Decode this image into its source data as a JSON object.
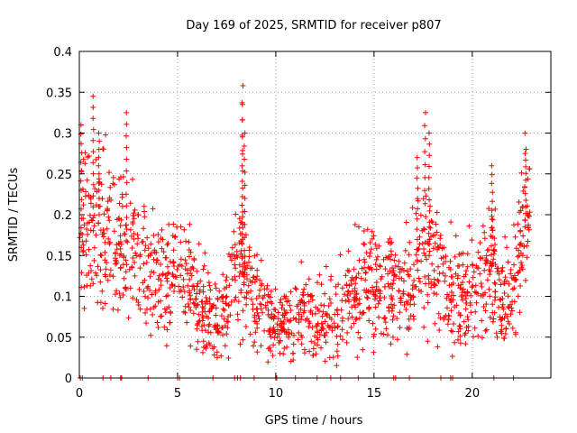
{
  "chart_data": {
    "type": "scatter",
    "title": "Day 169 of 2025, SRMTID for receiver p807",
    "xlabel": "GPS time / hours",
    "ylabel": "SRMTID / TECUs",
    "xlim": [
      0,
      24
    ],
    "ylim": [
      0,
      0.4
    ],
    "x_ticks": [
      0,
      5,
      10,
      15,
      20
    ],
    "x_tick_labels": [
      "0",
      "5",
      "10",
      "15",
      "20"
    ],
    "y_ticks": [
      0,
      0.05,
      0.1,
      0.15,
      0.2,
      0.25,
      0.3,
      0.35,
      0.4
    ],
    "y_tick_labels": [
      "0",
      "0.05",
      "0.1",
      "0.15",
      "0.2",
      "0.25",
      "0.3",
      "0.35",
      "0.4"
    ],
    "grid": true,
    "marker": "+",
    "marker_color": "#ff0000",
    "trend": [
      {
        "x": 0.0,
        "y": 0.18
      },
      {
        "x": 0.5,
        "y": 0.2
      },
      {
        "x": 1.0,
        "y": 0.19
      },
      {
        "x": 1.5,
        "y": 0.17
      },
      {
        "x": 2.0,
        "y": 0.16
      },
      {
        "x": 2.5,
        "y": 0.17
      },
      {
        "x": 3.0,
        "y": 0.15
      },
      {
        "x": 3.5,
        "y": 0.14
      },
      {
        "x": 4.0,
        "y": 0.13
      },
      {
        "x": 4.5,
        "y": 0.12
      },
      {
        "x": 5.0,
        "y": 0.13
      },
      {
        "x": 5.5,
        "y": 0.12
      },
      {
        "x": 6.0,
        "y": 0.1
      },
      {
        "x": 6.5,
        "y": 0.08
      },
      {
        "x": 7.0,
        "y": 0.07
      },
      {
        "x": 7.5,
        "y": 0.09
      },
      {
        "x": 8.0,
        "y": 0.14
      },
      {
        "x": 8.5,
        "y": 0.12
      },
      {
        "x": 9.0,
        "y": 0.1
      },
      {
        "x": 9.5,
        "y": 0.08
      },
      {
        "x": 10.0,
        "y": 0.06
      },
      {
        "x": 10.5,
        "y": 0.06
      },
      {
        "x": 11.0,
        "y": 0.07
      },
      {
        "x": 11.5,
        "y": 0.08
      },
      {
        "x": 12.0,
        "y": 0.07
      },
      {
        "x": 12.5,
        "y": 0.07
      },
      {
        "x": 13.0,
        "y": 0.07
      },
      {
        "x": 13.5,
        "y": 0.09
      },
      {
        "x": 14.0,
        "y": 0.11
      },
      {
        "x": 14.5,
        "y": 0.12
      },
      {
        "x": 15.0,
        "y": 0.12
      },
      {
        "x": 15.5,
        "y": 0.11
      },
      {
        "x": 16.0,
        "y": 0.1
      },
      {
        "x": 16.5,
        "y": 0.11
      },
      {
        "x": 17.0,
        "y": 0.12
      },
      {
        "x": 17.5,
        "y": 0.15
      },
      {
        "x": 18.0,
        "y": 0.15
      },
      {
        "x": 18.5,
        "y": 0.12
      },
      {
        "x": 19.0,
        "y": 0.1
      },
      {
        "x": 19.5,
        "y": 0.1
      },
      {
        "x": 20.0,
        "y": 0.11
      },
      {
        "x": 20.5,
        "y": 0.12
      },
      {
        "x": 21.0,
        "y": 0.14
      },
      {
        "x": 21.5,
        "y": 0.1
      },
      {
        "x": 22.0,
        "y": 0.1
      },
      {
        "x": 22.5,
        "y": 0.17
      },
      {
        "x": 22.9,
        "y": 0.2
      }
    ],
    "peaks": [
      {
        "x": 0.1,
        "y": 0.31
      },
      {
        "x": 0.7,
        "y": 0.345
      },
      {
        "x": 1.0,
        "y": 0.3
      },
      {
        "x": 2.4,
        "y": 0.325
      },
      {
        "x": 8.3,
        "y": 0.358
      },
      {
        "x": 8.3,
        "y": 0.335
      },
      {
        "x": 8.4,
        "y": 0.3
      },
      {
        "x": 17.6,
        "y": 0.325
      },
      {
        "x": 17.8,
        "y": 0.3
      },
      {
        "x": 17.2,
        "y": 0.27
      },
      {
        "x": 22.7,
        "y": 0.275
      },
      {
        "x": 21.0,
        "y": 0.26
      }
    ],
    "zero_markers_x": [
      0.05,
      0.15,
      1.2,
      1.6,
      2.1,
      2.15,
      3.5,
      5.0,
      5.1,
      6.8,
      7.9,
      8.05,
      8.2,
      8.9,
      10.0,
      10.05,
      11.0,
      12.1,
      12.8,
      13.3,
      14.2,
      16.0,
      16.1,
      16.8,
      18.4,
      18.9,
      19.0,
      21.1,
      22.1
    ]
  }
}
